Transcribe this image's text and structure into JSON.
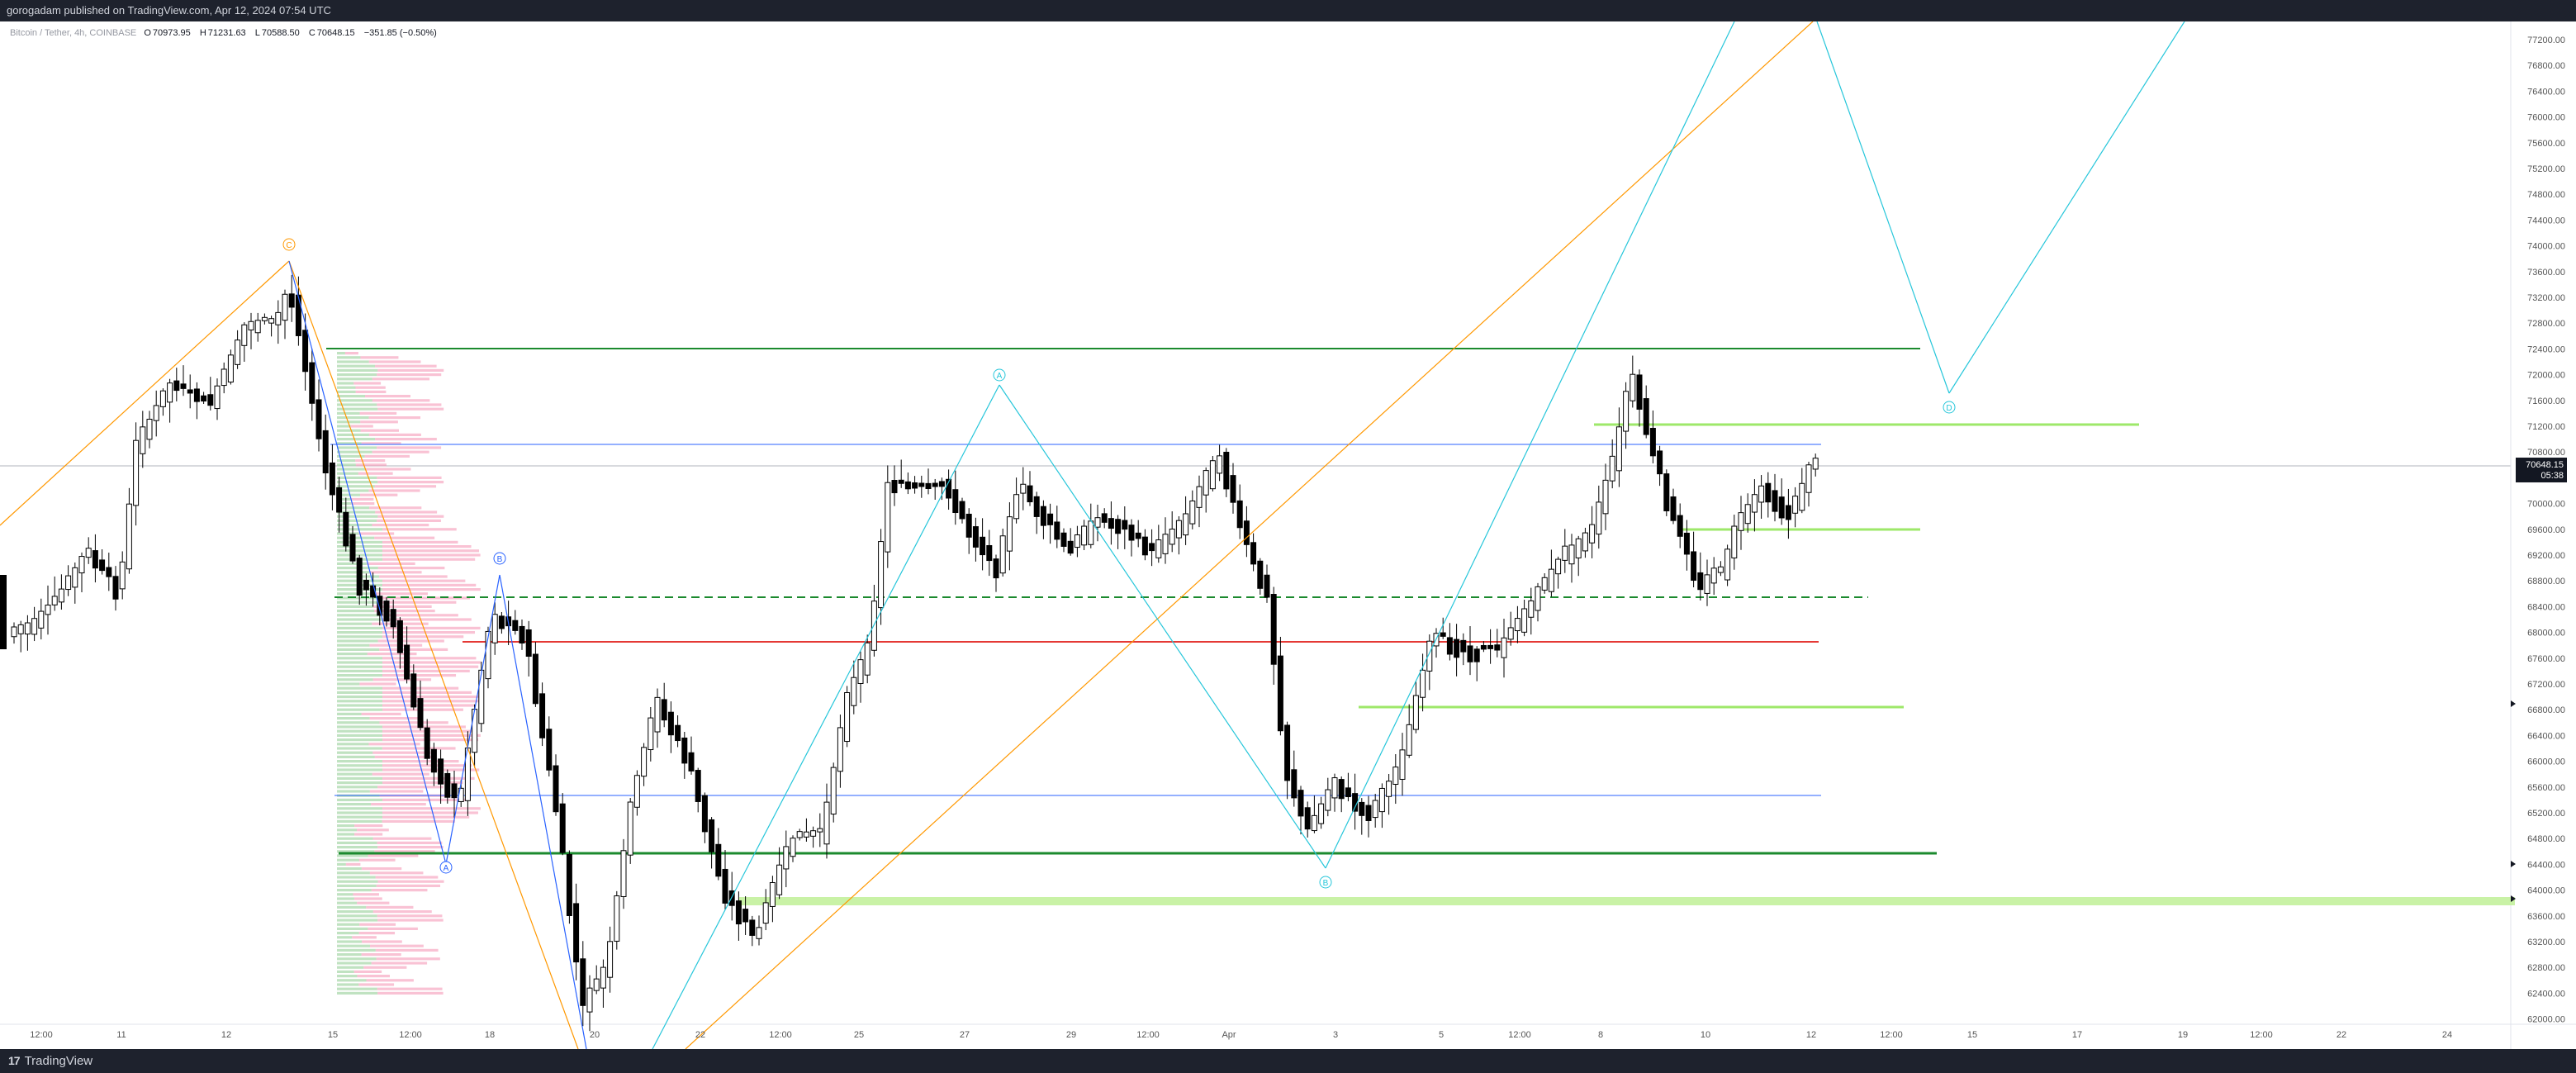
{
  "header": {
    "publish_text": "gorogadam published on TradingView.com, Apr 12, 2024 07:54 UTC"
  },
  "legend": {
    "symbol": "Bitcoin / Tether, 4h, COINBASE",
    "open": "70973.95",
    "high": "71231.63",
    "low": "70588.50",
    "close": "70648.15",
    "change": "−351.85 (−0.50%)",
    "o_label": "O",
    "h_label": "H",
    "l_label": "L",
    "c_label": "C"
  },
  "price_axis": {
    "labels": [
      "77200.00",
      "76800.00",
      "76400.00",
      "76000.00",
      "75600.00",
      "75200.00",
      "74800.00",
      "74400.00",
      "74000.00",
      "73600.00",
      "73200.00",
      "72800.00",
      "72400.00",
      "72000.00",
      "71600.00",
      "71200.00",
      "70800.00",
      "70400.00",
      "70000.00",
      "69600.00",
      "69200.00",
      "68800.00",
      "68400.00",
      "68000.00",
      "67600.00",
      "67200.00",
      "66800.00",
      "66400.00",
      "66000.00",
      "65600.00",
      "65200.00",
      "64800.00",
      "64400.00",
      "64000.00",
      "63600.00",
      "63200.00",
      "62800.00",
      "62400.00",
      "62000.00"
    ],
    "current_price": "70648.15",
    "countdown": "05:38"
  },
  "time_axis": [
    "12:00",
    "11",
    "12",
    "15",
    "12:00",
    "18",
    "20",
    "22",
    "12:00",
    "25",
    "27",
    "29",
    "12:00",
    "Apr",
    "3",
    "5",
    "12:00",
    "8",
    "10",
    "12",
    "12:00",
    "15",
    "17",
    "19",
    "12:00",
    "22",
    "24"
  ],
  "pattern_labels": {
    "harmonic1": [
      "C",
      "B",
      "A"
    ],
    "harmonic2": [
      "A",
      "B",
      "D"
    ]
  },
  "footer": {
    "brand": "TradingView"
  },
  "colors": {
    "up_candle": "#ffffff",
    "down_candle": "#000000",
    "orange_line": "#ff9800",
    "cyan_line": "#26c6da",
    "blue_line": "#2962ff",
    "green_line": "#1b8a2e",
    "light_green": "#9ee86a",
    "red_line": "#e53935"
  }
}
